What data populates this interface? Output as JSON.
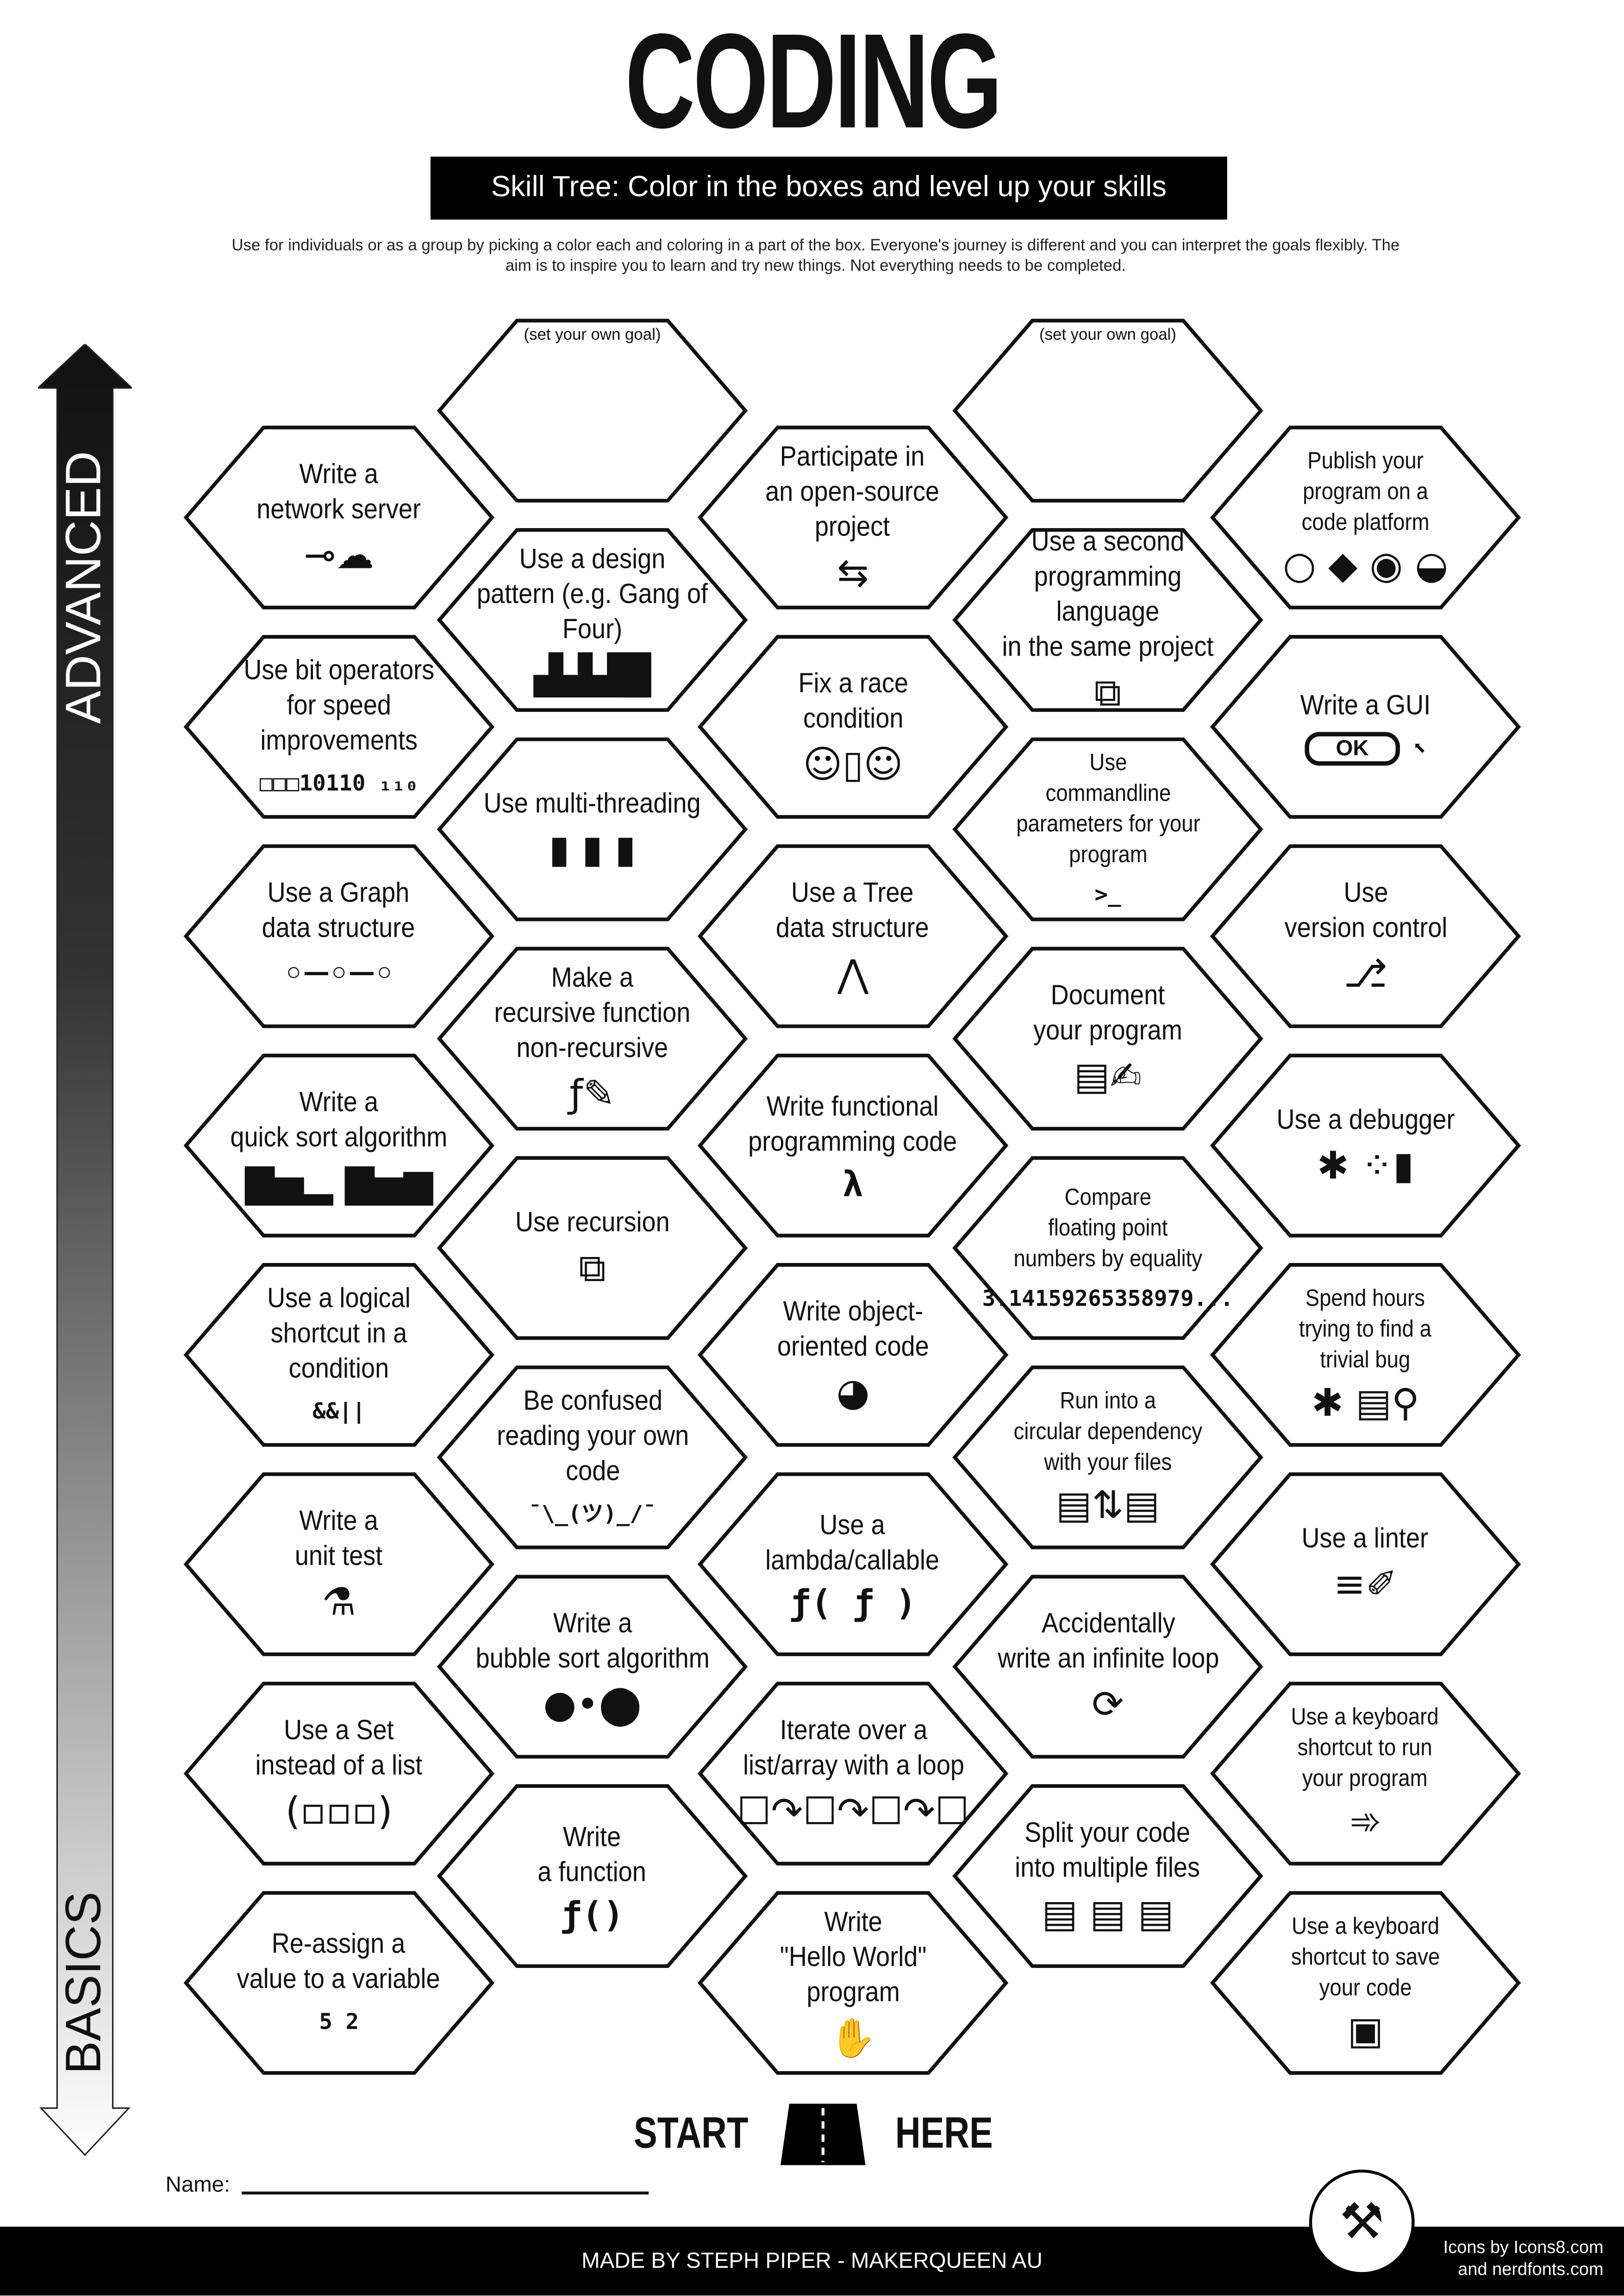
{
  "header": {
    "title": "CODING",
    "subtitle": "Skill Tree:  Color in the boxes and level up your skills",
    "description": "Use for individuals or as a group by picking a color each and coloring in a part of the box.  Everyone's journey is different and you can interpret the goals flexibly.  The aim is to inspire you to learn and try new things. Not everything needs to be completed."
  },
  "axis": {
    "top_label": "ADVANCED",
    "bottom_label": "BASICS"
  },
  "columns": [
    [
      {
        "label": "Write a\nnetwork server",
        "icon": "plug-cloud-icon"
      },
      {
        "label": "Use bit operators\nfor speed improvements",
        "icon": "bits-icon",
        "icon_text": "□□□10110 ₁₁₀"
      },
      {
        "label": "Use a Graph\ndata structure",
        "icon": "graph-icon"
      },
      {
        "label": "Write a\nquick sort algorithm",
        "icon": "bar-sort-icon"
      },
      {
        "label": "Use a logical\nshortcut in a\ncondition",
        "icon": "logic-icon",
        "icon_text": "&&||"
      },
      {
        "label": "Write a\nunit test",
        "icon": "test-tube-icon"
      },
      {
        "label": "Use a Set\ninstead of a list",
        "icon": "set-icon"
      },
      {
        "label": "Re-assign a\nvalue to a variable",
        "icon": "variable-icon",
        "icon_text": "5 2"
      }
    ],
    [
      {
        "goal": "(set your own goal)"
      },
      {
        "label": "Use a design\npattern (e.g. Gang of Four)",
        "icon": "factory-icon"
      },
      {
        "label": "Use multi-threading",
        "icon": "chips-icon"
      },
      {
        "label": "Make a\nrecursive function\nnon-recursive",
        "icon": "function-edit-icon"
      },
      {
        "label": "Use recursion",
        "icon": "recursion-icon"
      },
      {
        "label": "Be confused\nreading your own\ncode",
        "icon": "shrug-icon",
        "icon_text": "¯\\_(ツ)_/¯"
      },
      {
        "label": "Write a\nbubble sort algorithm",
        "icon": "bubbles-icon"
      },
      {
        "label": "Write\na function",
        "icon": "function-icon",
        "icon_text": "ƒ()"
      }
    ],
    [
      {
        "label": "Participate in\nan open-source\nproject",
        "icon": "handshake-icon"
      },
      {
        "label": "Fix a race\ncondition",
        "icon": "race-icon"
      },
      {
        "label": "Use a Tree\ndata structure",
        "icon": "tree-icon"
      },
      {
        "label": "Write functional\nprogramming code",
        "icon": "lambda-icon",
        "icon_text": "λ"
      },
      {
        "label": "Write object-\noriented code",
        "icon": "duck-icon"
      },
      {
        "label": "Use a\nlambda/callable",
        "icon": "callable-icon",
        "icon_text": "ƒ( ƒ )"
      },
      {
        "label": "Iterate over a\nlist/array with a loop",
        "icon": "iterate-icon"
      },
      {
        "label": "Write\n\"Hello World\"\nprogram",
        "icon": "wave-icon"
      }
    ],
    [
      {
        "goal": "(set your own goal)"
      },
      {
        "label": "Use a second\nprogramming language\nin the same project",
        "icon": "languages-icon"
      },
      {
        "label": "Use\ncommandline\nparameters for your\nprogram",
        "icon": "terminal-icon",
        "icon_text": ">_",
        "small": true
      },
      {
        "label": "Document\nyour program",
        "icon": "document-pen-icon"
      },
      {
        "label": "Compare\nfloating point\nnumbers by equality",
        "icon": "pi-icon",
        "icon_text": "3.14159265358979...",
        "small": true
      },
      {
        "label": "Run into a\ncircular dependency\nwith your files",
        "icon": "circular-files-icon",
        "small": true
      },
      {
        "label": "Accidentally\nwrite an infinite loop",
        "icon": "loop-icon"
      },
      {
        "label": "Split your code\ninto multiple files",
        "icon": "files-icon"
      }
    ],
    [
      {
        "label": "Publish your\nprogram on a\ncode platform",
        "icon": "platforms-icon",
        "small": true
      },
      {
        "label": "Write a GUI",
        "icon": "ok-button-icon",
        "icon_text": "OK"
      },
      {
        "label": "Use\nversion control",
        "icon": "branch-icon"
      },
      {
        "label": "Use a debugger",
        "icon": "bug-spray-icon"
      },
      {
        "label": "Spend hours\ntrying to find a\ntrivial bug",
        "icon": "bug-search-icon",
        "small": true
      },
      {
        "label": "Use a linter",
        "icon": "broom-icon"
      },
      {
        "label": "Use a keyboard\nshortcut to run\nyour program",
        "icon": "running-icon",
        "small": true
      },
      {
        "label": "Use a keyboard\nshortcut to save\nyour code",
        "icon": "floppy-icon",
        "small": true
      }
    ]
  ],
  "start": {
    "left": "START",
    "right": "HERE"
  },
  "name_label": "Name:",
  "footer": {
    "made_by": "MADE BY STEPH PIPER  -  MAKERQUEEN AU",
    "credits_1": "Icons by Icons8.com",
    "credits_2": "and nerdfonts.com"
  },
  "colors": {
    "ink": "#111111",
    "footer_bg": "#000000",
    "paper": "#ffffff"
  }
}
